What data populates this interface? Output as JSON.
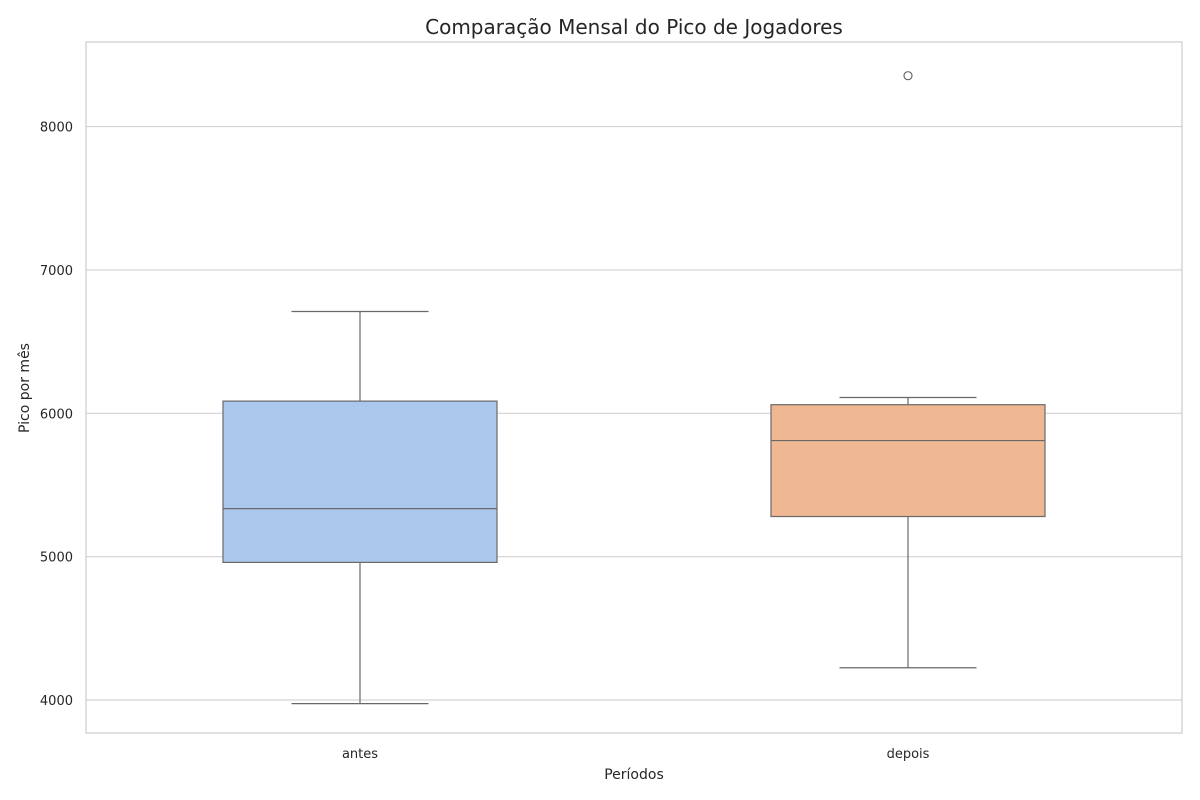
{
  "chart_data": {
    "type": "box",
    "title": "Comparação Mensal do Pico de Jogadores",
    "xlabel": "Períodos",
    "ylabel": "Pico por mês",
    "ylim": [
      3770,
      8590
    ],
    "yticks": [
      4000,
      5000,
      6000,
      7000,
      8000
    ],
    "grid": true,
    "categories": [
      "antes",
      "depois"
    ],
    "boxes": [
      {
        "category": "antes",
        "whisker_low": 3975,
        "q1": 4960,
        "median": 5335,
        "q3": 6085,
        "whisker_high": 6710,
        "outliers": [],
        "color": "#a9c8ec"
      },
      {
        "category": "depois",
        "whisker_low": 4225,
        "q1": 5280,
        "median": 5810,
        "q3": 6060,
        "whisker_high": 6110,
        "outliers": [
          8355
        ],
        "color": "#f0b793"
      }
    ]
  }
}
